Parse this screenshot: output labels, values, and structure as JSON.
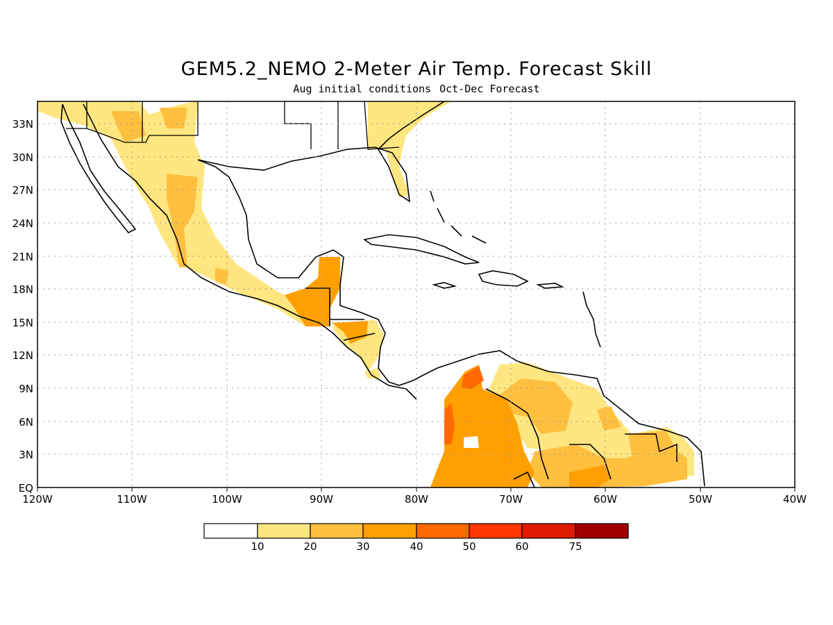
{
  "map": {
    "title": "GEM5.2_NEMO 2-Meter Air Temp. Forecast Skill",
    "subtitle_left": "Aug initial conditions",
    "subtitle_right": "Oct-Dec Forecast",
    "lat_labels": [
      "33N",
      "30N",
      "27N",
      "24N",
      "21N",
      "18N",
      "15N",
      "12N",
      "9N",
      "6N",
      "3N",
      "EQ"
    ],
    "lon_labels": [
      "120W",
      "110W",
      "100W",
      "90W",
      "80W",
      "70W",
      "60W",
      "50W",
      "40W"
    ]
  },
  "colorbar": {
    "labels": [
      "10",
      "20",
      "30",
      "40",
      "50",
      "60",
      "75"
    ],
    "colors": [
      "#ffffff",
      "#ffe680",
      "#ffc040",
      "#ffa000",
      "#ff6a00",
      "#ff3700",
      "#e01a00",
      "#a00000"
    ]
  }
}
